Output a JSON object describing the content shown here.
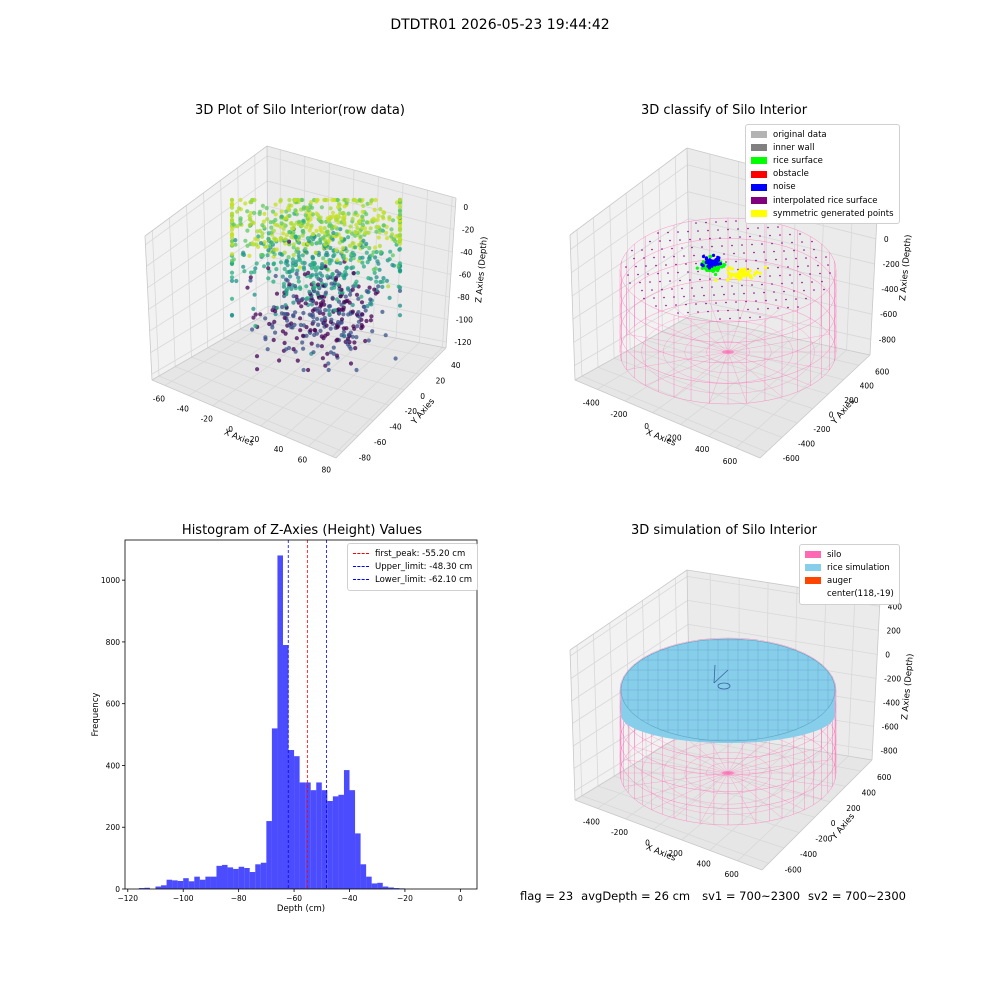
{
  "suptitle": "DTDTR01 2026-05-23 19:44:42",
  "panels": {
    "raw": {
      "title": "3D Plot of Silo Interior(row data)",
      "xlabel": "X Axies",
      "ylabel": "Y Axies",
      "zlabel": "Z Axies (Depth)",
      "xticks": [
        "-60",
        "-40",
        "-20",
        "0",
        "20",
        "40",
        "60",
        "80"
      ],
      "yticks": [
        "-80",
        "-60",
        "-40",
        "-20",
        "0",
        "20",
        "40"
      ],
      "zticks": [
        "-120",
        "-100",
        "-80",
        "-60",
        "-40",
        "-20",
        "0"
      ]
    },
    "classify": {
      "title": "3D classify of Silo Interior",
      "xlabel": "X Axies",
      "ylabel": "Y Axies",
      "zlabel": "Z Axies (Depth)",
      "xticks": [
        "-400",
        "-200",
        "0",
        "200",
        "400",
        "600"
      ],
      "yticks": [
        "-600",
        "-400",
        "-200",
        "0",
        "200",
        "400",
        "600"
      ],
      "zticks": [
        "-800",
        "-600",
        "-400",
        "-200",
        "0",
        "200"
      ],
      "legend": [
        {
          "label": "original data",
          "color": "#b3b3b3"
        },
        {
          "label": "inner wall",
          "color": "#808080"
        },
        {
          "label": "rice surface",
          "color": "#00ff00"
        },
        {
          "label": "obstacle",
          "color": "#ff0000"
        },
        {
          "label": "noise",
          "color": "#0000ff"
        },
        {
          "label": "interpolated rice surface",
          "color": "#800080"
        },
        {
          "label": "symmetric generated points",
          "color": "#ffff00"
        }
      ]
    },
    "simulation": {
      "title": "3D simulation of Silo Interior",
      "xlabel": "X Axies",
      "ylabel": "Y Axies",
      "zlabel": "Z Axies (Depth)",
      "xticks": [
        "-400",
        "-200",
        "0",
        "200",
        "400",
        "600"
      ],
      "yticks": [
        "-600",
        "-400",
        "-200",
        "0",
        "200",
        "400",
        "600"
      ],
      "zticks": [
        "-800",
        "-600",
        "-400",
        "-200",
        "0",
        "200",
        "400"
      ],
      "legend": [
        {
          "label": "silo",
          "color": "#ff69b4"
        },
        {
          "label": "rice simulation",
          "color": "#87ceeb"
        },
        {
          "label": "auger",
          "color": "#ff4500"
        },
        {
          "label": "center(118,-19)",
          "color": ""
        }
      ]
    }
  },
  "status": {
    "flag": "flag = 23",
    "avg_depth": "avgDepth = 26 cm",
    "sv1": "sv1 = 700~2300",
    "sv2": "sv2 = 700~2300"
  },
  "chart_data": [
    {
      "type": "scatter",
      "title": "3D Plot of Silo Interior(row data)",
      "xlabel": "X Axies",
      "ylabel": "Y Axies",
      "zlabel": "Z Axies (Depth)",
      "xlim": [
        -70,
        80
      ],
      "ylim": [
        -85,
        45
      ],
      "zlim": [
        -125,
        5
      ],
      "colormap": "viridis"
    },
    {
      "type": "scatter",
      "title": "3D classify of Silo Interior",
      "xlabel": "X Axies",
      "ylabel": "Y Axies",
      "zlabel": "Z Axies (Depth)",
      "xlim": [
        -500,
        700
      ],
      "ylim": [
        -650,
        650
      ],
      "zlim": [
        -900,
        300
      ]
    },
    {
      "type": "bar",
      "title": "Histogram of Z-Axies (Height) Values",
      "xlabel": "Depth (cm)",
      "ylabel": "Frequency",
      "xlim": [
        -121,
        6
      ],
      "ylim": [
        0,
        1130
      ],
      "xticks": [
        -120,
        -100,
        -80,
        -60,
        -40,
        -20,
        0
      ],
      "yticks": [
        0,
        200,
        400,
        600,
        800,
        1000
      ],
      "bin_width": 2.0,
      "bin_start": -116.0,
      "values": [
        3,
        4,
        0,
        8,
        12,
        30,
        28,
        26,
        35,
        25,
        40,
        30,
        40,
        40,
        75,
        78,
        70,
        65,
        72,
        68,
        55,
        80,
        85,
        220,
        520,
        1080,
        790,
        450,
        430,
        345,
        345,
        320,
        345,
        320,
        285,
        300,
        305,
        385,
        320,
        180,
        80,
        40,
        18,
        20,
        8,
        5,
        3,
        2
      ],
      "color": "#0000ff",
      "vlines": [
        {
          "label": "first_peak: -55.20 cm",
          "x": -55.2,
          "color": "#ff0000"
        },
        {
          "label": "Upper_limit: -48.30 cm",
          "x": -48.3,
          "color": "#0000ff"
        },
        {
          "label": "Lower_limit: -62.10 cm",
          "x": -62.1,
          "color": "#0000ff"
        }
      ],
      "legend": "top-right"
    },
    {
      "type": "scatter",
      "title": "3D simulation of Silo Interior",
      "xlabel": "X Axies",
      "ylabel": "Y Axies",
      "zlabel": "Z Axies (Depth)",
      "xlim": [
        -500,
        700
      ],
      "ylim": [
        -650,
        650
      ],
      "zlim": [
        -900,
        450
      ]
    }
  ]
}
